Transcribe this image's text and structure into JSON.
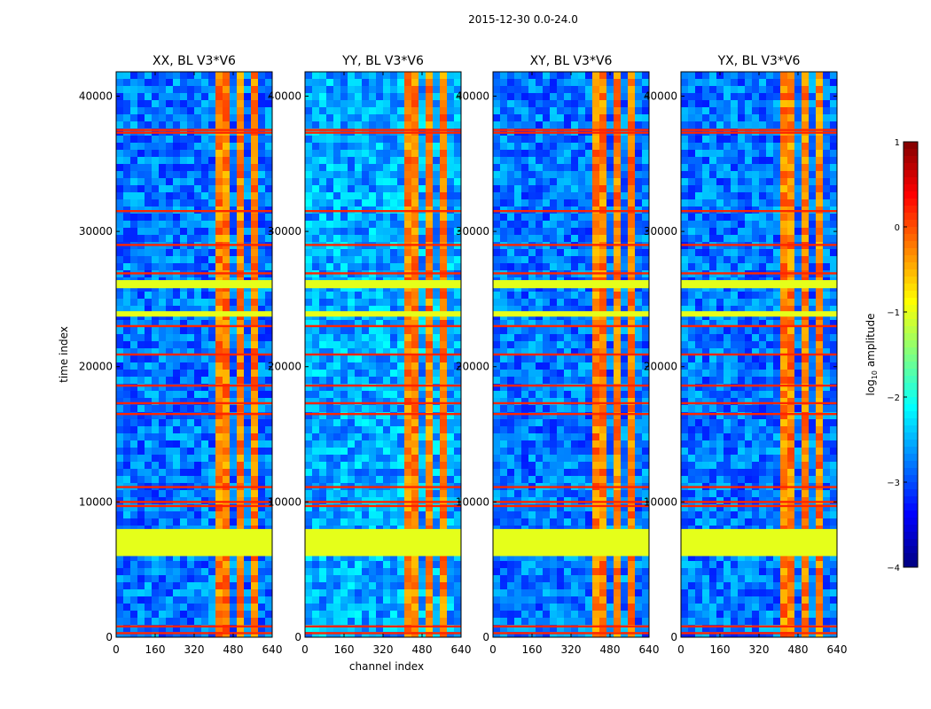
{
  "figure": {
    "suptitle": "2015-12-30 0.0-24.0"
  },
  "chart_data": {
    "type": "heatmap",
    "colormap": "jet",
    "panels": [
      {
        "title": "XX, BL V3*V6"
      },
      {
        "title": "YY, BL V3*V6"
      },
      {
        "title": "XY, BL V3*V6"
      },
      {
        "title": "YX, BL V3*V6"
      }
    ],
    "xlabel": "channel index",
    "ylabel": "time index",
    "xlim": [
      0,
      640
    ],
    "ylim": [
      0,
      41800
    ],
    "xticks": [
      0,
      160,
      320,
      480,
      640
    ],
    "yticks": [
      0,
      10000,
      20000,
      30000,
      40000
    ],
    "xtick_labels": [
      "0",
      "160",
      "320",
      "480",
      "640"
    ],
    "ytick_labels": [
      "0",
      "10000",
      "20000",
      "30000",
      "40000"
    ],
    "colorbar": {
      "label_prefix": "log",
      "label_sub": "10",
      "label_suffix": " amplitude",
      "range": [
        -4,
        1
      ],
      "ticks": [
        1,
        0,
        -1,
        -2,
        -3,
        -4
      ],
      "tick_labels": [
        "1",
        "0",
        "−1",
        "−2",
        "−3",
        "−4"
      ]
    },
    "features": {
      "flagged_time_ranges": [
        [
          6000,
          8000
        ],
        [
          25800,
          26400
        ],
        [
          23700,
          24100
        ]
      ],
      "flagged_value": -1.0,
      "rfi_time_lines": [
        300,
        800,
        9700,
        10000,
        11100,
        16500,
        17300,
        18600,
        20900,
        23000,
        26900,
        29000,
        31500,
        37300,
        37500
      ],
      "rfi_line_value": 0.2,
      "high_channel_bands": [
        [
          400,
          450
        ],
        [
          480,
          500
        ],
        [
          540,
          550
        ],
        [
          590,
          600
        ]
      ],
      "high_band_value": -0.6,
      "background_value": -2.8
    }
  }
}
